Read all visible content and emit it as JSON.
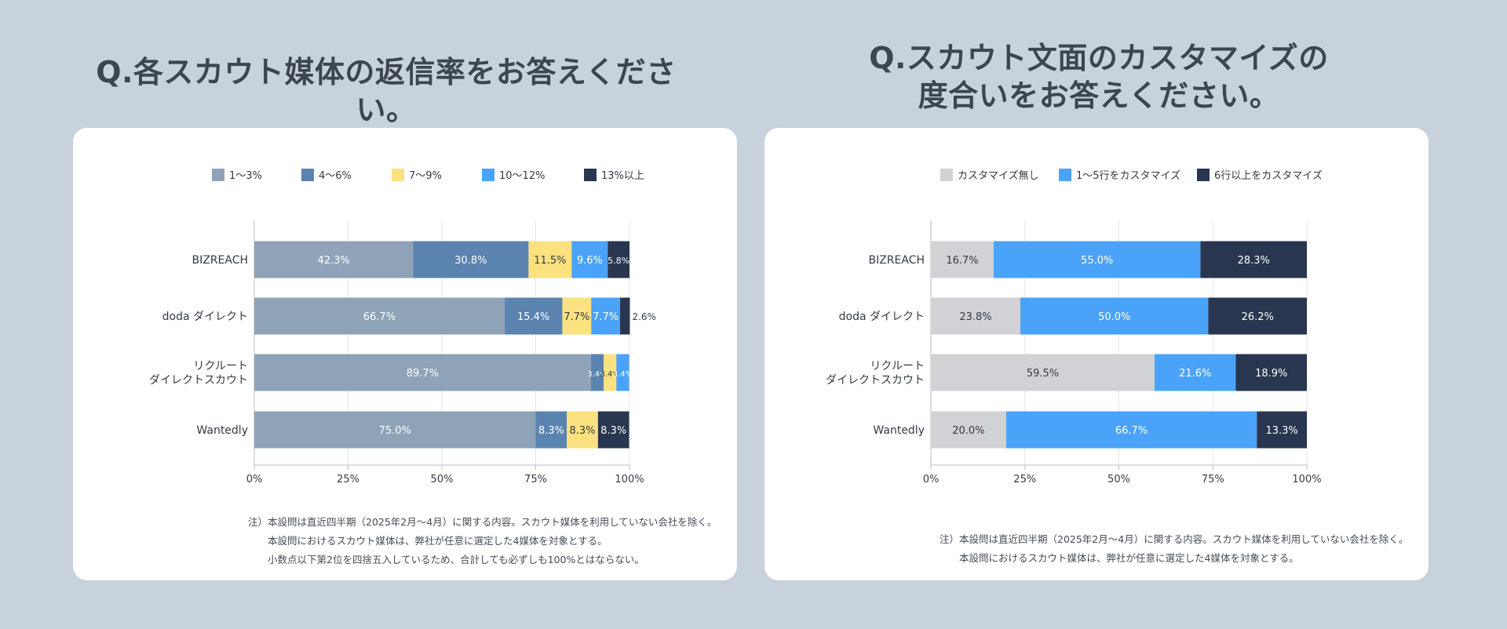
{
  "titles": {
    "left": [
      "Q.各スカウト媒体の返信率をお答えください。"
    ],
    "right": [
      "Q.スカウト文面のカスタマイズの",
      "度合いをお答えください。"
    ]
  },
  "chart_data": [
    {
      "type": "bar",
      "orientation": "horizontal",
      "stacked": true,
      "categories": [
        "BIZREACH",
        "doda ダイレクト",
        "リクルート\nダイレクトスカウト",
        "Wantedly"
      ],
      "series": [
        {
          "name": "1〜3%",
          "color": "#8fa3b8",
          "values": [
            42.3,
            66.7,
            89.7,
            75.0
          ],
          "labels": [
            "42.3%",
            "66.7%",
            "89.7%",
            "75.0%"
          ]
        },
        {
          "name": "4〜6%",
          "color": "#5a83b0",
          "values": [
            30.8,
            15.4,
            3.4,
            8.3
          ],
          "labels": [
            "30.8%",
            "15.4%",
            "3.4%",
            "8.3%"
          ]
        },
        {
          "name": "7〜9%",
          "color": "#fbe17f",
          "values": [
            11.5,
            7.7,
            3.4,
            8.3
          ],
          "labels": [
            "11.5%",
            "7.7%",
            "3.4%",
            "8.3%"
          ]
        },
        {
          "name": "10〜12%",
          "color": "#4aa3f8",
          "values": [
            9.6,
            7.7,
            3.4,
            0
          ],
          "labels": [
            "9.6%",
            "7.7%",
            "3.4%",
            ""
          ]
        },
        {
          "name": "13%以上",
          "color": "#28364f",
          "values": [
            5.8,
            2.6,
            0,
            8.3
          ],
          "labels": [
            "5.8%",
            "2.6%",
            "",
            "8.3%"
          ]
        }
      ],
      "xticks": [
        "0%",
        "25%",
        "50%",
        "75%",
        "100%"
      ],
      "xlim": [
        0,
        100
      ],
      "grid": true,
      "legend": "top"
    },
    {
      "type": "bar",
      "orientation": "horizontal",
      "stacked": true,
      "categories": [
        "BIZREACH",
        "doda ダイレクト",
        "リクルート\nダイレクトスカウト",
        "Wantedly"
      ],
      "series": [
        {
          "name": "カスタマイズ無し",
          "color": "#d0d2d5",
          "values": [
            16.7,
            23.8,
            59.5,
            20.0
          ],
          "labels": [
            "16.7%",
            "23.8%",
            "59.5%",
            "20.0%"
          ]
        },
        {
          "name": "1〜5行をカスタマイズ",
          "color": "#4aa3f8",
          "values": [
            55.0,
            50.0,
            21.6,
            66.7
          ],
          "labels": [
            "55.0%",
            "50.0%",
            "21.6%",
            "66.7%"
          ]
        },
        {
          "name": "6行以上をカスタマイズ",
          "color": "#28364f",
          "values": [
            28.3,
            26.2,
            18.9,
            13.3
          ],
          "labels": [
            "28.3%",
            "26.2%",
            "18.9%",
            "13.3%"
          ]
        }
      ],
      "xticks": [
        "0%",
        "25%",
        "50%",
        "75%",
        "100%"
      ],
      "xlim": [
        0,
        100
      ],
      "grid": true,
      "legend": "top"
    }
  ],
  "notes": {
    "left": [
      "注）本設問は直近四半期（2025年2月〜4月）に関する内容。スカウト媒体を利用していない会社を除く。",
      "本設問におけるスカウト媒体は、弊社が任意に選定した4媒体を対象とする。",
      "小数点以下第2位を四捨五入しているため、合計しても必ずしも100%とはならない。"
    ],
    "right": [
      "注）本設問は直近四半期（2025年2月〜4月）に関する内容。スカウト媒体を利用していない会社を除く。",
      "本設問におけるスカウト媒体は、弊社が任意に選定した4媒体を対象とする。"
    ]
  }
}
